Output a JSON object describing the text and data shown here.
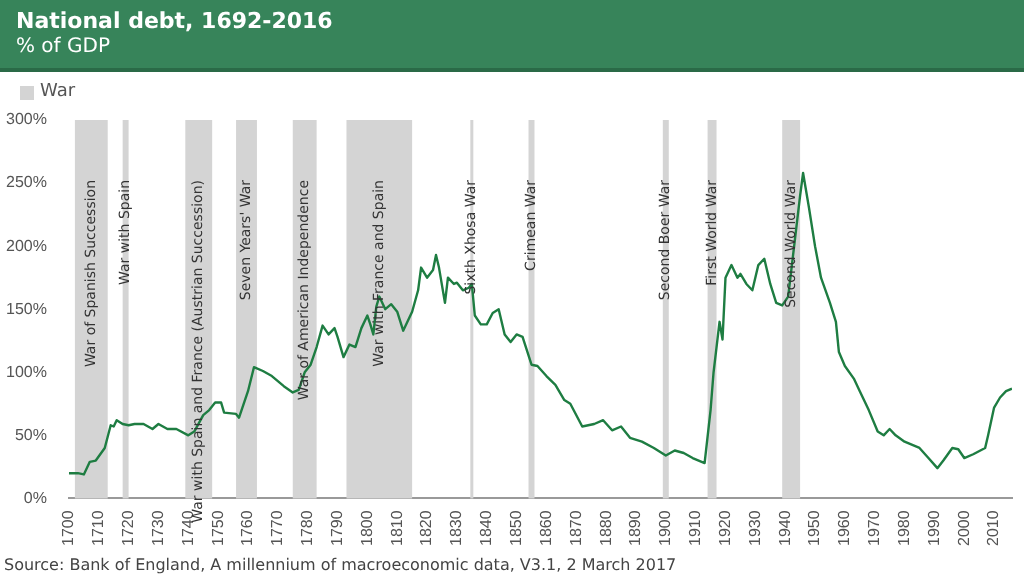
{
  "chart_data": {
    "type": "line",
    "title": "National debt, 1692-2016",
    "subtitle": "% of GDP",
    "legend_title": "War",
    "grid": false,
    "marker": "none",
    "line_style": "solid",
    "annotations": [
      "Source: Bank of England, A millennium of macroeconomic data, V3.1, 2 March 2017"
    ],
    "xlim": [
      1700,
      2016
    ],
    "xticks": [
      1700,
      1710,
      1720,
      1730,
      1740,
      1750,
      1760,
      1770,
      1780,
      1790,
      1800,
      1810,
      1820,
      1830,
      1840,
      1850,
      1860,
      1870,
      1880,
      1890,
      1900,
      1910,
      1920,
      1930,
      1940,
      1950,
      1960,
      1970,
      1980,
      1990,
      2000,
      2010
    ],
    "ylim": [
      0,
      300
    ],
    "yticks": [
      {
        "value": 0,
        "label": "0%"
      },
      {
        "value": 50,
        "label": "50%"
      },
      {
        "value": 100,
        "label": "100%"
      },
      {
        "value": 150,
        "label": "150%"
      },
      {
        "value": 200,
        "label": "200%"
      },
      {
        "value": 250,
        "label": "250%"
      },
      {
        "value": 300,
        "label": "300%"
      }
    ],
    "bands": [
      {
        "axis": "x",
        "from": 1702,
        "to": 1713,
        "label": "War of Spanish Succession",
        "color": "#d4d4d4"
      },
      {
        "axis": "x",
        "from": 1718,
        "to": 1720,
        "label": "War with Spain",
        "color": "#d4d4d4"
      },
      {
        "axis": "x",
        "from": 1739,
        "to": 1748,
        "label": "War with Spain and France (Austrian Succession)",
        "color": "#d4d4d4"
      },
      {
        "axis": "x",
        "from": 1756,
        "to": 1763,
        "label": "Seven Years' War",
        "color": "#d4d4d4"
      },
      {
        "axis": "x",
        "from": 1775,
        "to": 1783,
        "label": "War of American Independence",
        "color": "#d4d4d4"
      },
      {
        "axis": "x",
        "from": 1793,
        "to": 1815,
        "label": "War with France and Spain",
        "color": "#d4d4d4"
      },
      {
        "axis": "x",
        "from": 1834.5,
        "to": 1835.5,
        "label": "Sixth Xhosa War",
        "color": "#d4d4d4"
      },
      {
        "axis": "x",
        "from": 1854,
        "to": 1856,
        "label": "Crimean War",
        "color": "#d4d4d4"
      },
      {
        "axis": "x",
        "from": 1899,
        "to": 1901,
        "label": "Second Boer War",
        "color": "#d4d4d4"
      },
      {
        "axis": "x",
        "from": 1914,
        "to": 1917,
        "label": "First World War",
        "color": "#d4d4d4"
      },
      {
        "axis": "x",
        "from": 1939,
        "to": 1945,
        "label": "Second World War",
        "color": "#d4d4d4"
      }
    ],
    "series": [
      {
        "color": "#1e7d42",
        "x": [
          1700,
          1703,
          1705,
          1707,
          1709,
          1712,
          1714,
          1715,
          1716,
          1718,
          1720,
          1722,
          1725,
          1728,
          1730,
          1733,
          1736,
          1740,
          1742,
          1745,
          1747,
          1749,
          1751,
          1752,
          1756,
          1757,
          1760,
          1762,
          1765,
          1768,
          1772,
          1775,
          1777,
          1779,
          1781,
          1783,
          1785,
          1787,
          1789,
          1790,
          1792,
          1794,
          1796,
          1798,
          1800,
          1801,
          1802,
          1803,
          1804,
          1806,
          1808,
          1810,
          1812,
          1815,
          1817,
          1818,
          1820,
          1822,
          1823,
          1824,
          1826,
          1827,
          1829,
          1830,
          1832,
          1834,
          1835,
          1836,
          1838,
          1840,
          1842,
          1844,
          1846,
          1848,
          1850,
          1852,
          1855,
          1857,
          1860,
          1863,
          1866,
          1868,
          1872,
          1876,
          1879,
          1882,
          1885,
          1888,
          1892,
          1896,
          1900,
          1903,
          1906,
          1909,
          1913,
          1915,
          1916,
          1918,
          1919,
          1920,
          1922,
          1924,
          1925,
          1927,
          1929,
          1931,
          1933,
          1935,
          1937,
          1939,
          1941,
          1943,
          1945,
          1946,
          1948,
          1950,
          1952,
          1955,
          1957,
          1958,
          1960,
          1963,
          1965,
          1968,
          1971,
          1973,
          1975,
          1977,
          1980,
          1983,
          1985,
          1988,
          1991,
          1993,
          1996,
          1998,
          2000,
          2003,
          2007,
          2008,
          2010,
          2012,
          2014,
          2016
        ],
        "values": [
          20,
          20,
          19,
          29,
          30,
          40,
          58,
          57,
          62,
          59,
          58,
          59,
          59,
          55,
          59,
          55,
          55,
          50,
          53,
          66,
          70,
          76,
          76,
          68,
          67,
          64,
          85,
          104,
          101,
          97,
          89,
          84,
          86,
          100,
          106,
          120,
          137,
          130,
          135,
          128,
          112,
          122,
          120,
          135,
          145,
          138,
          130,
          152,
          160,
          150,
          154,
          148,
          133,
          148,
          165,
          183,
          175,
          181,
          193,
          183,
          155,
          175,
          170,
          171,
          165,
          167,
          170,
          145,
          138,
          138,
          147,
          150,
          130,
          124,
          130,
          128,
          106,
          105,
          97,
          90,
          78,
          75,
          57,
          59,
          62,
          54,
          57,
          48,
          45,
          40,
          34,
          38,
          36,
          32,
          28,
          70,
          100,
          140,
          126,
          175,
          185,
          175,
          178,
          170,
          165,
          185,
          190,
          170,
          155,
          153,
          160,
          200,
          240,
          258,
          230,
          200,
          175,
          155,
          140,
          116,
          105,
          95,
          85,
          70,
          53,
          50,
          55,
          50,
          45,
          42,
          40,
          32,
          24,
          30,
          40,
          39,
          32,
          35,
          40,
          50,
          72,
          80,
          85,
          87
        ]
      }
    ]
  }
}
